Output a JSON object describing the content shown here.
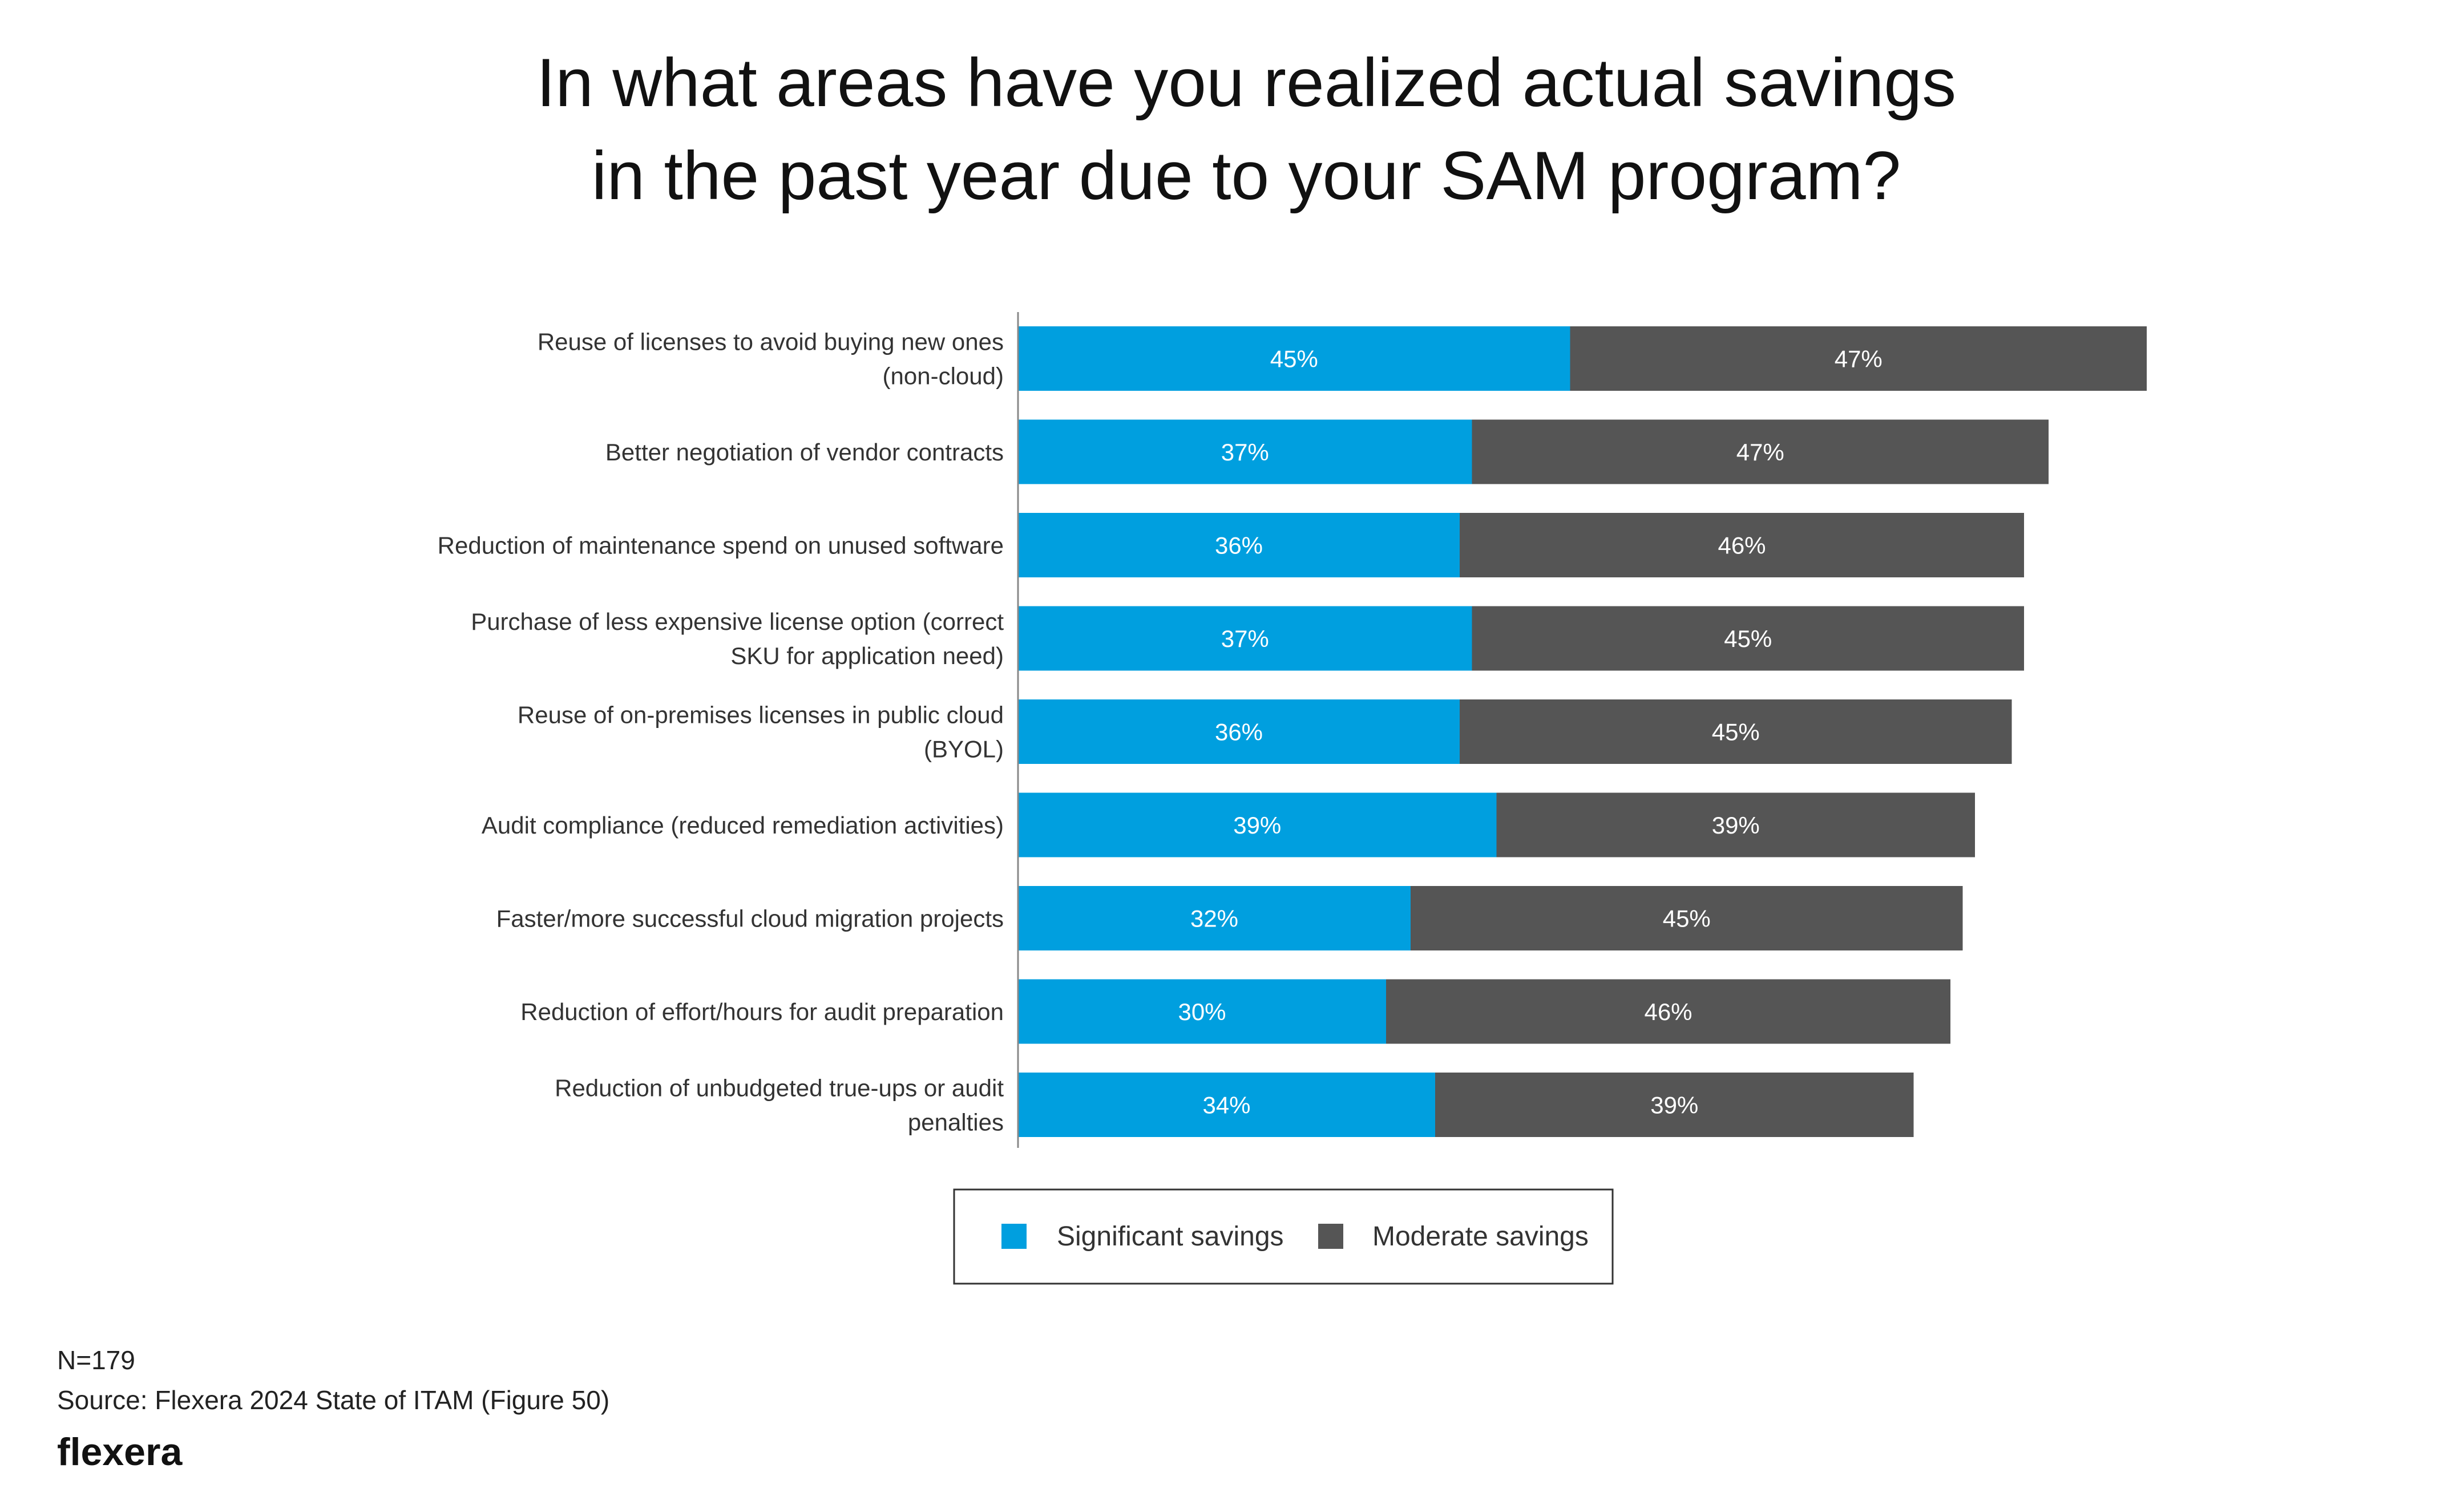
{
  "chart_data": {
    "type": "bar",
    "orientation": "horizontal",
    "stacked": true,
    "title_lines": [
      "In what areas have you realized actual savings",
      "in the past year due to your SAM program?"
    ],
    "categories": [
      [
        "Reuse of licenses to avoid buying new ones",
        "(non-cloud)"
      ],
      [
        "Better negotiation of vendor contracts"
      ],
      [
        "Reduction of maintenance spend on unused software"
      ],
      [
        "Purchase of less expensive license option (correct",
        "SKU for application need)"
      ],
      [
        "Reuse of on-premises licenses in public cloud",
        "(BYOL)"
      ],
      [
        "Audit compliance (reduced remediation activities)"
      ],
      [
        "Faster/more successful cloud migration projects"
      ],
      [
        "Reduction of effort/hours for audit preparation"
      ],
      [
        "Reduction of unbudgeted true-ups or audit",
        "penalties"
      ]
    ],
    "series": [
      {
        "name": "Significant savings",
        "color": "#009FDF",
        "values": [
          45,
          37,
          36,
          37,
          36,
          39,
          32,
          30,
          34
        ]
      },
      {
        "name": "Moderate savings",
        "color": "#555555",
        "values": [
          47,
          47,
          46,
          45,
          45,
          39,
          45,
          46,
          39
        ]
      }
    ],
    "value_suffix": "%",
    "xlim": [
      0,
      100
    ],
    "grid": false,
    "legend_position": "bottom-center"
  },
  "footnote": {
    "n": "N=179",
    "source": "Source: Flexera 2024 State of ITAM (Figure 50)"
  },
  "logo": {
    "text": "flexera"
  }
}
